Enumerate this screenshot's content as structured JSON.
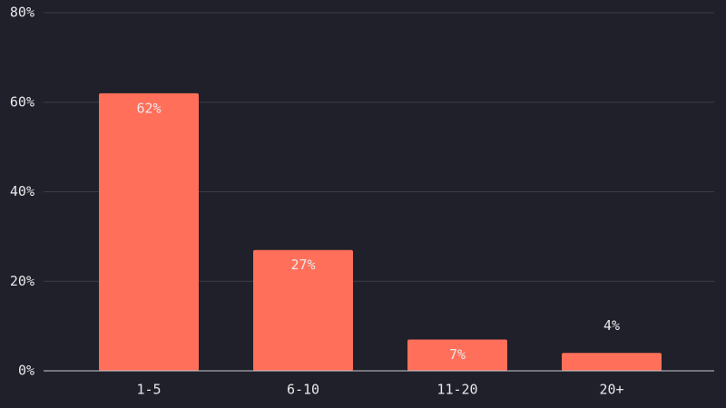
{
  "chart_data": {
    "type": "bar",
    "categories": [
      "1-5",
      "6-10",
      "11-20",
      "20+"
    ],
    "values": [
      62,
      27,
      7,
      4
    ],
    "value_labels": [
      "62%",
      "27%",
      "7%",
      "4%"
    ],
    "color": "#ff6f59",
    "ylim": [
      0,
      80
    ],
    "yticks": [
      {
        "value": 0,
        "label": "0%"
      },
      {
        "value": 20,
        "label": "20%"
      },
      {
        "value": 40,
        "label": "40%"
      },
      {
        "value": 60,
        "label": "60%"
      },
      {
        "value": 80,
        "label": "80%"
      }
    ],
    "grid": true
  }
}
